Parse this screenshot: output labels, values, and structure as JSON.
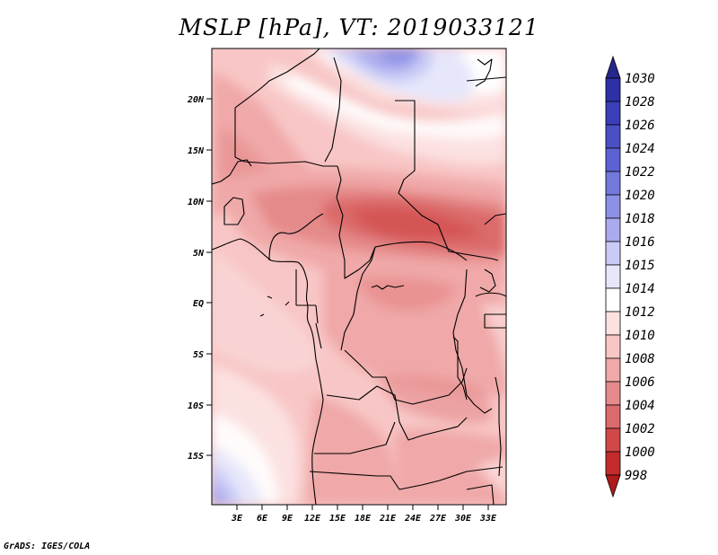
{
  "title": "MSLP [hPa], VT: 2019033121",
  "credit": "GrADS: IGES/COLA",
  "map": {
    "region": "Central Africa",
    "lon_range": [
      0,
      36
    ],
    "lat_range": [
      -20,
      25
    ],
    "lat_ticks": [
      "20N",
      "15N",
      "10N",
      "5N",
      "EQ",
      "5S",
      "10S",
      "15S"
    ],
    "lon_ticks": [
      "3E",
      "6E",
      "9E",
      "12E",
      "15E",
      "18E",
      "21E",
      "24E",
      "27E",
      "30E",
      "33E"
    ]
  },
  "colorbar": {
    "levels": [
      "1030",
      "1028",
      "1026",
      "1024",
      "1022",
      "1020",
      "1018",
      "1016",
      "1015",
      "1014",
      "1012",
      "1010",
      "1008",
      "1006",
      "1004",
      "1002",
      "1000",
      "998"
    ],
    "colors": [
      "#26278c",
      "#2e31a6",
      "#3a3eb8",
      "#4a4fc6",
      "#5d62d2",
      "#7378dd",
      "#8c90e6",
      "#a9abee",
      "#c9cbf6",
      "#e6e7fb",
      "#ffffff",
      "#fce1e1",
      "#f8c6c6",
      "#f0a8a8",
      "#e58a8a",
      "#db6a6a",
      "#d14848",
      "#c42b2b",
      "#b01a1a"
    ]
  }
}
